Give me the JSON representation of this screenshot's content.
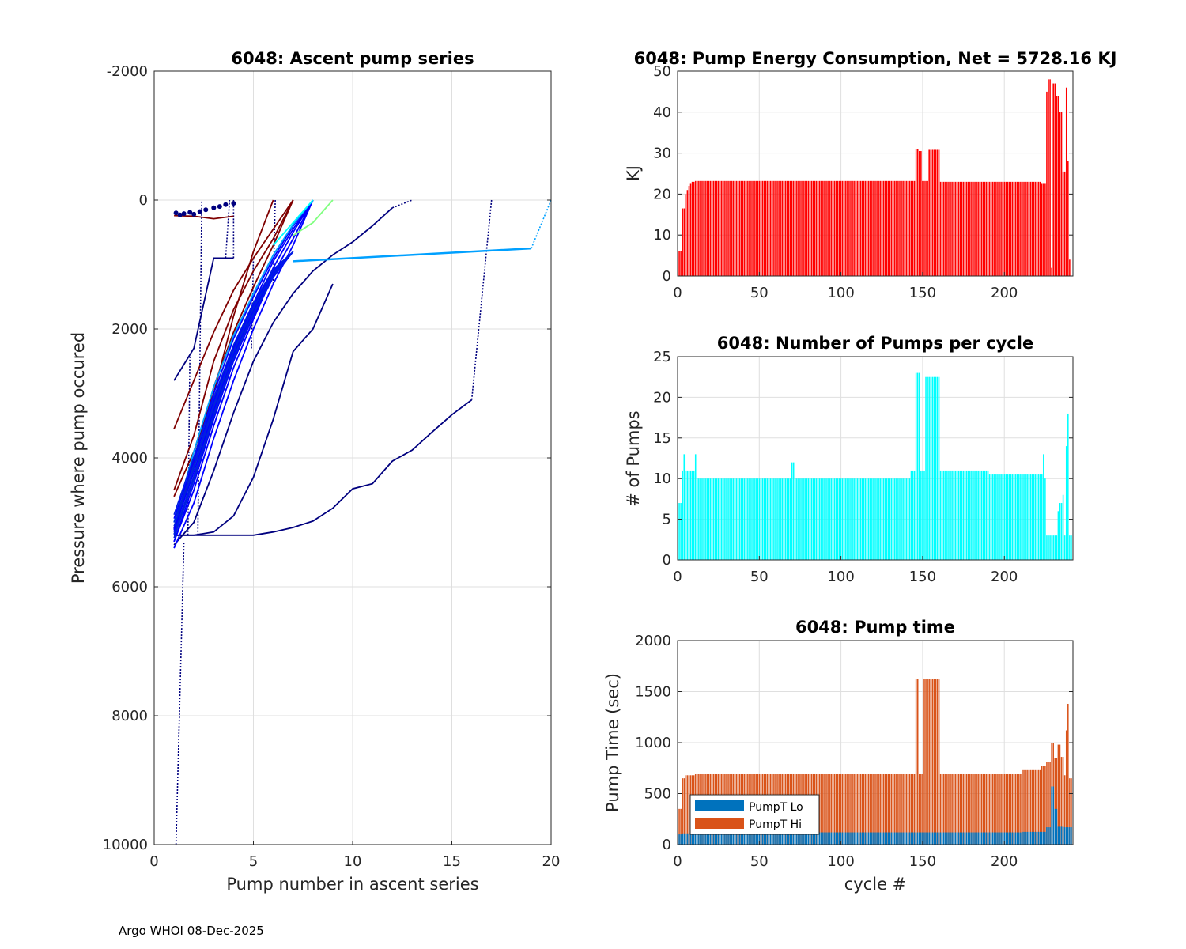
{
  "footer": "Argo WHOI 08-Dec-2025",
  "colors": {
    "energy": "#ff0000",
    "pumps": "#00ffff",
    "pumpt_lo": "#0072bd",
    "pumpt_hi": "#d95319",
    "series_dark_red": "#7f0000",
    "series_dark_blue": "#00007f",
    "series_blue": "#0000ff",
    "series_sky": "#00a0ff",
    "series_cyan": "#00ffff",
    "series_green": "#80ff80"
  },
  "chart_data": [
    {
      "id": "ascent",
      "type": "line",
      "title": "6048: Ascent pump series",
      "xlabel": "Pump number in ascent series",
      "ylabel": "Pressure where pump occured",
      "xlim": [
        0,
        20
      ],
      "ylim": [
        -2000,
        10000
      ],
      "y_reversed": true,
      "xticks": [
        0,
        5,
        10,
        15,
        20
      ],
      "xtick_labels": [
        "0",
        "5",
        "10",
        "15",
        "20"
      ],
      "yticks": [
        -2000,
        0,
        2000,
        4000,
        6000,
        8000,
        10000
      ],
      "ytick_labels": [
        "-2000",
        "0",
        "2000",
        "4000",
        "6000",
        "8000",
        "10000"
      ],
      "grid": true,
      "series": [
        {
          "name": "long_tail",
          "color": "#00007f",
          "x": [
            1,
            2,
            5,
            6,
            7,
            8,
            9,
            10,
            11,
            12,
            13,
            14,
            15,
            16
          ],
          "y": [
            5200,
            5200,
            5200,
            5150,
            5080,
            4980,
            4780,
            4480,
            4400,
            4050,
            3880,
            3600,
            3330,
            3100
          ],
          "surface": [
            17,
            0
          ]
        },
        {
          "name": "outlier_a",
          "color": "#00007f",
          "x": [
            1,
            2,
            3,
            4,
            5,
            6,
            7,
            8,
            9
          ],
          "y": [
            5200,
            5200,
            5150,
            4900,
            4300,
            3400,
            2350,
            2000,
            1300
          ]
        },
        {
          "name": "outlier_b",
          "color": "#00007f",
          "x": [
            1,
            2,
            3,
            4,
            5,
            6,
            7,
            8,
            9,
            10,
            11,
            12
          ],
          "y": [
            5350,
            5000,
            4200,
            3300,
            2500,
            1900,
            1450,
            1100,
            850,
            650,
            400,
            120
          ],
          "surface": [
            13,
            0
          ]
        },
        {
          "name": "outlier_c",
          "color": "#00007f",
          "x": [
            1,
            2,
            3,
            4
          ],
          "y": [
            2800,
            2300,
            900,
            900
          ],
          "surface": [
            4,
            0
          ]
        },
        {
          "name": "sky_jump",
          "color": "#00a0ff",
          "x": [
            7,
            19
          ],
          "y": [
            950,
            750
          ],
          "surface": [
            20,
            0
          ]
        },
        {
          "name": "red_1",
          "color": "#7f0000",
          "x": [
            1,
            2,
            3,
            4,
            5,
            6,
            7
          ],
          "y": [
            3550,
            2800,
            2050,
            1400,
            900,
            450,
            0
          ]
        },
        {
          "name": "red_2",
          "color": "#7f0000",
          "x": [
            1,
            2,
            3,
            4,
            5,
            6,
            7
          ],
          "y": [
            4500,
            3650,
            2500,
            1700,
            1100,
            600,
            0
          ]
        },
        {
          "name": "red_3",
          "color": "#7f0000",
          "x": [
            1,
            2,
            3,
            4,
            5,
            6,
            7
          ],
          "y": [
            5100,
            4050,
            2900,
            2050,
            1350,
            700,
            0
          ]
        },
        {
          "name": "red_4",
          "color": "#7f0000",
          "x": [
            1,
            2,
            3,
            4,
            5,
            6
          ],
          "y": [
            4600,
            3900,
            3000,
            1800,
            800,
            0
          ]
        },
        {
          "name": "red_shallow",
          "color": "#7f0000",
          "x": [
            1,
            2,
            3,
            4
          ],
          "y": [
            240,
            250,
            290,
            250
          ]
        },
        {
          "name": "blue_1",
          "color": "#0000ff",
          "x": [
            1,
            2,
            3,
            4,
            5,
            6,
            7,
            8
          ],
          "y": [
            5400,
            4700,
            3700,
            2800,
            2000,
            1300,
            700,
            0
          ]
        },
        {
          "name": "blue_2",
          "color": "#0000ff",
          "x": [
            1,
            2,
            3,
            4,
            5,
            6,
            7,
            8
          ],
          "y": [
            5300,
            4500,
            3500,
            2600,
            1850,
            1150,
            600,
            0
          ]
        },
        {
          "name": "blue_3",
          "color": "#0000ff",
          "x": [
            1,
            2,
            3,
            4,
            5,
            6,
            7,
            8
          ],
          "y": [
            5200,
            4300,
            3300,
            2400,
            1700,
            1050,
            500,
            0
          ]
        },
        {
          "name": "blue_4",
          "color": "#0000ff",
          "x": [
            1,
            2,
            3,
            4,
            5,
            6,
            7,
            8
          ],
          "y": [
            5150,
            4150,
            3150,
            2300,
            1600,
            950,
            450,
            0
          ]
        },
        {
          "name": "blue_5",
          "color": "#0000ff",
          "x": [
            1,
            2,
            3,
            4,
            5,
            6,
            7,
            8
          ],
          "y": [
            5100,
            4000,
            3000,
            2150,
            1500,
            900,
            400,
            0
          ]
        },
        {
          "name": "sky_1",
          "color": "#00a0ff",
          "x": [
            1,
            2,
            3,
            4,
            5,
            6,
            7,
            8
          ],
          "y": [
            5000,
            3900,
            2900,
            2100,
            1450,
            850,
            380,
            0
          ]
        },
        {
          "name": "cyan_1",
          "color": "#00ffff",
          "x": [
            6,
            7,
            8
          ],
          "y": [
            700,
            350,
            0
          ]
        },
        {
          "name": "green_1",
          "color": "#80ff80",
          "x": [
            7,
            8,
            9
          ],
          "y": [
            550,
            350,
            0
          ]
        }
      ],
      "near_surface_points": {
        "x": [
          1.1,
          1.3,
          1.5,
          1.8,
          2.0,
          2.3,
          2.6,
          3.0,
          3.3,
          3.6,
          4.0
        ],
        "y": [
          200,
          230,
          210,
          190,
          220,
          180,
          150,
          120,
          100,
          70,
          50
        ]
      }
    },
    {
      "id": "energy",
      "type": "bar",
      "title": "6048: Pump Energy Consumption,  Net = 5728.16 KJ",
      "xlabel": "",
      "ylabel": "KJ",
      "xlim": [
        0,
        242
      ],
      "ylim": [
        0,
        50
      ],
      "xticks": [
        0,
        50,
        100,
        150,
        200
      ],
      "xtick_labels": [
        "0",
        "50",
        "100",
        "150",
        "200"
      ],
      "yticks": [
        0,
        10,
        20,
        30,
        40,
        50
      ],
      "ytick_labels": [
        "0",
        "10",
        "20",
        "30",
        "40",
        "50"
      ],
      "grid": true,
      "segments": [
        {
          "from": 1,
          "to": 2,
          "value": 6
        },
        {
          "from": 3,
          "to": 4,
          "value": 16.5
        },
        {
          "from": 5,
          "to": 5,
          "value": 20
        },
        {
          "from": 6,
          "to": 6,
          "value": 21
        },
        {
          "from": 7,
          "to": 7,
          "value": 22
        },
        {
          "from": 8,
          "to": 8,
          "value": 22.5
        },
        {
          "from": 9,
          "to": 10,
          "value": 23
        },
        {
          "from": 11,
          "to": 145,
          "value": 23.2
        },
        {
          "from": 146,
          "to": 147,
          "value": 31
        },
        {
          "from": 148,
          "to": 149,
          "value": 30.5
        },
        {
          "from": 150,
          "to": 153,
          "value": 23.2
        },
        {
          "from": 154,
          "to": 160,
          "value": 30.8
        },
        {
          "from": 161,
          "to": 222,
          "value": 23
        },
        {
          "from": 223,
          "to": 225,
          "value": 22.5
        },
        {
          "from": 226,
          "to": 226,
          "value": 45
        },
        {
          "from": 227,
          "to": 228,
          "value": 48
        },
        {
          "from": 229,
          "to": 229,
          "value": 2
        },
        {
          "from": 230,
          "to": 231,
          "value": 47
        },
        {
          "from": 232,
          "to": 233,
          "value": 44
        },
        {
          "from": 234,
          "to": 235,
          "value": 40
        },
        {
          "from": 236,
          "to": 237,
          "value": 25.5
        },
        {
          "from": 238,
          "to": 238,
          "value": 46
        },
        {
          "from": 239,
          "to": 239,
          "value": 28
        },
        {
          "from": 240,
          "to": 240,
          "value": 4
        }
      ]
    },
    {
      "id": "pumps",
      "type": "bar",
      "title": "6048: Number of Pumps per cycle",
      "xlabel": "",
      "ylabel": "# of Pumps",
      "xlim": [
        0,
        242
      ],
      "ylim": [
        0,
        25
      ],
      "xticks": [
        0,
        50,
        100,
        150,
        200
      ],
      "xtick_labels": [
        "0",
        "50",
        "100",
        "150",
        "200"
      ],
      "yticks": [
        0,
        5,
        10,
        15,
        20,
        25
      ],
      "ytick_labels": [
        "0",
        "5",
        "10",
        "15",
        "20",
        "25"
      ],
      "grid": true,
      "segments": [
        {
          "from": 1,
          "to": 2,
          "value": 7
        },
        {
          "from": 3,
          "to": 3,
          "value": 11
        },
        {
          "from": 4,
          "to": 4,
          "value": 13
        },
        {
          "from": 5,
          "to": 10,
          "value": 11
        },
        {
          "from": 11,
          "to": 11,
          "value": 13
        },
        {
          "from": 12,
          "to": 69,
          "value": 10
        },
        {
          "from": 70,
          "to": 71,
          "value": 12
        },
        {
          "from": 72,
          "to": 142,
          "value": 10
        },
        {
          "from": 143,
          "to": 144,
          "value": 11
        },
        {
          "from": 145,
          "to": 145,
          "value": 11
        },
        {
          "from": 146,
          "to": 148,
          "value": 23
        },
        {
          "from": 149,
          "to": 151,
          "value": 11
        },
        {
          "from": 152,
          "to": 160,
          "value": 22.5
        },
        {
          "from": 161,
          "to": 190,
          "value": 11
        },
        {
          "from": 191,
          "to": 223,
          "value": 10.5
        },
        {
          "from": 224,
          "to": 224,
          "value": 13
        },
        {
          "from": 225,
          "to": 225,
          "value": 10
        },
        {
          "from": 226,
          "to": 232,
          "value": 3
        },
        {
          "from": 233,
          "to": 233,
          "value": 6
        },
        {
          "from": 234,
          "to": 235,
          "value": 7
        },
        {
          "from": 236,
          "to": 236,
          "value": 8
        },
        {
          "from": 237,
          "to": 237,
          "value": 3
        },
        {
          "from": 238,
          "to": 238,
          "value": 14
        },
        {
          "from": 239,
          "to": 239,
          "value": 18
        },
        {
          "from": 240,
          "to": 241,
          "value": 3
        }
      ]
    },
    {
      "id": "pumptime",
      "type": "bar",
      "title": "6048: Pump time",
      "xlabel": "cycle #",
      "ylabel": "Pump Time (sec)",
      "xlim": [
        0,
        242
      ],
      "ylim": [
        0,
        2000
      ],
      "xticks": [
        0,
        50,
        100,
        150,
        200
      ],
      "xtick_labels": [
        "0",
        "50",
        "100",
        "150",
        "200"
      ],
      "yticks": [
        0,
        500,
        1000,
        1500,
        2000
      ],
      "ytick_labels": [
        "0",
        "500",
        "1000",
        "1500",
        "2000"
      ],
      "grid": true,
      "legend": {
        "position": "bottom-left",
        "entries": [
          "PumpT Lo",
          "PumpT Hi"
        ]
      },
      "segments": [
        {
          "from": 1,
          "to": 2,
          "lo": 100,
          "hi": 350
        },
        {
          "from": 3,
          "to": 4,
          "lo": 110,
          "hi": 650
        },
        {
          "from": 5,
          "to": 10,
          "lo": 110,
          "hi": 680
        },
        {
          "from": 11,
          "to": 145,
          "lo": 120,
          "hi": 690
        },
        {
          "from": 146,
          "to": 147,
          "lo": 120,
          "hi": 1620
        },
        {
          "from": 148,
          "to": 150,
          "lo": 120,
          "hi": 690
        },
        {
          "from": 151,
          "to": 160,
          "lo": 120,
          "hi": 1620
        },
        {
          "from": 161,
          "to": 210,
          "lo": 120,
          "hi": 690
        },
        {
          "from": 211,
          "to": 222,
          "lo": 125,
          "hi": 730
        },
        {
          "from": 223,
          "to": 225,
          "lo": 125,
          "hi": 770
        },
        {
          "from": 226,
          "to": 228,
          "lo": 170,
          "hi": 810
        },
        {
          "from": 229,
          "to": 230,
          "lo": 570,
          "hi": 1000
        },
        {
          "from": 231,
          "to": 232,
          "lo": 350,
          "hi": 850
        },
        {
          "from": 233,
          "to": 234,
          "lo": 175,
          "hi": 980
        },
        {
          "from": 235,
          "to": 236,
          "lo": 175,
          "hi": 860
        },
        {
          "from": 237,
          "to": 237,
          "lo": 170,
          "hi": 680
        },
        {
          "from": 238,
          "to": 238,
          "lo": 170,
          "hi": 1120
        },
        {
          "from": 239,
          "to": 239,
          "lo": 170,
          "hi": 1380
        },
        {
          "from": 240,
          "to": 241,
          "lo": 170,
          "hi": 650
        }
      ]
    }
  ]
}
